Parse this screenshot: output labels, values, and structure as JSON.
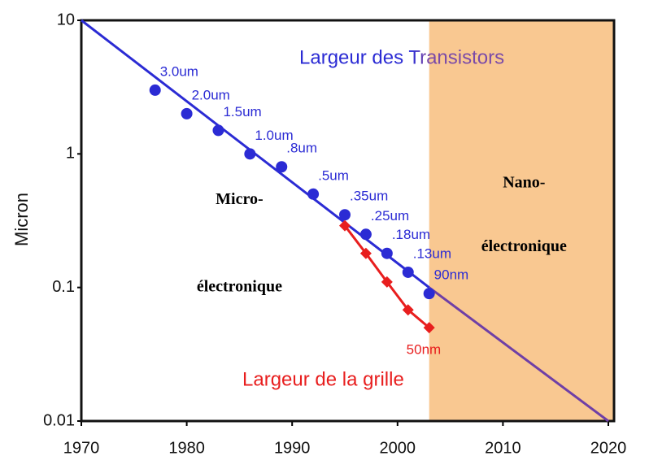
{
  "chart_data": {
    "type": "scatter",
    "y_label": "Micron",
    "log_y": true,
    "xlim": [
      1970,
      2020
    ],
    "xticks": [
      1970,
      1980,
      1990,
      2000,
      2010,
      2020
    ],
    "ylim": [
      0.01,
      10
    ],
    "yticks": [
      0.01,
      0.1,
      1,
      10
    ],
    "shaded_region": {
      "xlim": [
        2003,
        2020
      ],
      "color": "#f9c891"
    },
    "series": [
      {
        "name": "Largeur des Transistors",
        "color": "#2b2bd4",
        "marker": "circle",
        "connect": false,
        "x": [
          1977,
          1980,
          1983,
          1986,
          1989,
          1992,
          1995,
          1997,
          1999,
          2001,
          2003
        ],
        "values": [
          3.0,
          2.0,
          1.5,
          1.0,
          0.8,
          0.5,
          0.35,
          0.25,
          0.18,
          0.13,
          0.09
        ],
        "value_labels": [
          "3.0um",
          "2.0um",
          "1.5um",
          "1.0um",
          ".8um",
          ".5um",
          ".35um",
          ".25um",
          ".18um",
          ".13um",
          "90nm"
        ]
      },
      {
        "name": "Largeur de la grille",
        "color": "#e81e1e",
        "marker": "diamond",
        "connect": true,
        "x": [
          1995,
          1997,
          1999,
          2001,
          2003
        ],
        "values": [
          0.29,
          0.18,
          0.11,
          0.068,
          0.05
        ],
        "value_labels": [
          null,
          null,
          null,
          null,
          "50nm"
        ]
      }
    ],
    "trend_lines": [
      {
        "color": "#2b2bd4",
        "x": [
          1970,
          2003
        ],
        "values": [
          10,
          0.1
        ]
      },
      {
        "color": "#6f3fa6",
        "x": [
          2003,
          2020
        ],
        "values": [
          0.1,
          0.01
        ]
      }
    ],
    "annotations": [
      {
        "text": "Micro-",
        "x": 1985,
        "y": 0.45
      },
      {
        "text": "électronique",
        "x": 1985,
        "y": 0.1
      },
      {
        "text": "Nano-",
        "x": 2012,
        "y": 0.6
      },
      {
        "text": "électronique",
        "x": 2012,
        "y": 0.2
      }
    ]
  }
}
